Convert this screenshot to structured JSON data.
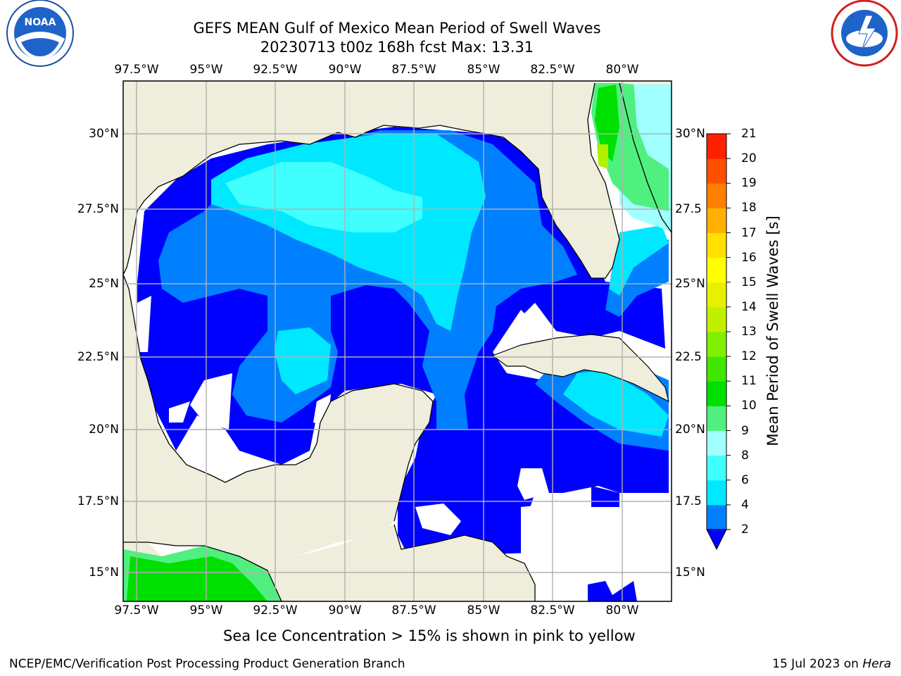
{
  "title": {
    "line1": "GEFS MEAN Gulf of Mexico Mean Period of Swell Waves",
    "line2": "20230713 t00z 168h fcst   Max: 13.31"
  },
  "logos": {
    "left": "noaa-logo",
    "right": "nws-logo"
  },
  "map": {
    "lon_labels": [
      "97.5°W",
      "95°W",
      "92.5°W",
      "90°W",
      "87.5°W",
      "85°W",
      "82.5°W",
      "80°W"
    ],
    "lat_labels": [
      "30°N",
      "27.5°N",
      "25°N",
      "22.5°N",
      "20°N",
      "17.5°N",
      "15°N"
    ],
    "lat_labels_right": [
      "30°N",
      "27.5",
      "25°N",
      "22.5",
      "20°N",
      "17.5",
      "15°N"
    ],
    "colors": {
      "land": "#efeddb",
      "ocean_low": "#0000ff",
      "ocean_2_4": "#0080ff",
      "ocean_4_6": "#00ffff",
      "ocean_6_8": "#40ffff",
      "ocean_8_9": "#a0ffff",
      "ocean_9_10": "#50f080",
      "ocean_10_11": "#00e000",
      "ocean_12": "#a0f000",
      "grid": "#b0b0b0"
    }
  },
  "colorbar": {
    "title": "Mean Period of Swell Waves [s]",
    "levels": [
      "2",
      "4",
      "6",
      "8",
      "9",
      "10",
      "11",
      "12",
      "13",
      "14",
      "15",
      "16",
      "17",
      "18",
      "19",
      "20",
      "21"
    ],
    "colors": [
      "#0080ff",
      "#00e8ff",
      "#40ffff",
      "#a0ffff",
      "#50f080",
      "#00e000",
      "#40e800",
      "#80f000",
      "#c0f000",
      "#e8f000",
      "#ffff00",
      "#ffe000",
      "#ffb000",
      "#ff8000",
      "#ff5000",
      "#ff2000",
      "#ff0000"
    ],
    "under_color": "#0000ff"
  },
  "subtitle": "Sea Ice Concentration > 15% is shown in pink to yellow",
  "footer": {
    "left": "NCEP/EMC/Verification Post Processing Product Generation Branch",
    "right_prefix": "15 Jul 2023 on ",
    "right_host": "Hera"
  }
}
